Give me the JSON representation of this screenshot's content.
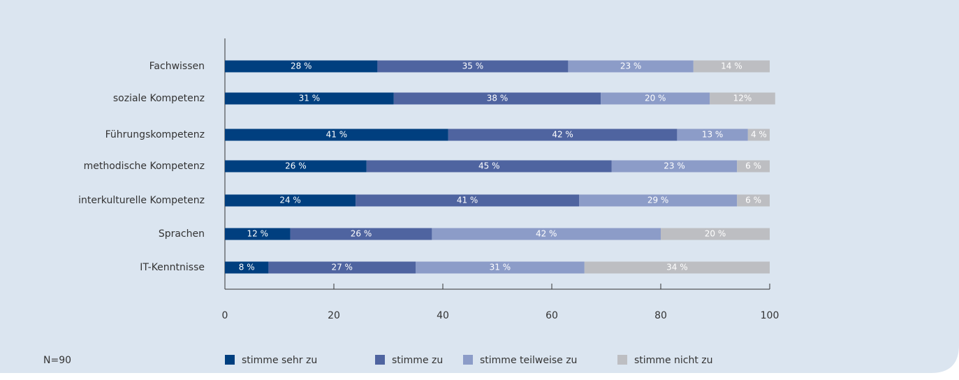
{
  "chart_data": {
    "type": "stacked_bar_horizontal",
    "categories": [
      "Fachwissen",
      "soziale Kompetenz",
      "Führungskompetenz",
      "methodische Kompetenz",
      "interkulturelle Kompetenz",
      "Sprachen",
      "IT-Kenntnisse"
    ],
    "series": [
      {
        "name": "stimme sehr zu",
        "color": "#003f7f",
        "values": [
          28,
          31,
          41,
          26,
          24,
          12,
          8
        ],
        "value_labels": [
          "28 %",
          "31 %",
          "41 %",
          "26 %",
          "24 %",
          "12 %",
          "8 %"
        ]
      },
      {
        "name": "stimme zu",
        "color": "#4f64a0",
        "values": [
          35,
          38,
          42,
          45,
          41,
          26,
          27
        ],
        "value_labels": [
          "35 %",
          "38 %",
          "42 %",
          "45 %",
          "41 %",
          "26 %",
          "27 %"
        ]
      },
      {
        "name": "stimme teilweise zu",
        "color": "#8c9cc8",
        "values": [
          23,
          20,
          13,
          23,
          29,
          42,
          31
        ],
        "value_labels": [
          "23 %",
          "20 %",
          "13 %",
          "23 %",
          "29 %",
          "42 %",
          "31 %"
        ]
      },
      {
        "name": "stimme nicht zu",
        "color": "#bdbec2",
        "values": [
          14,
          12,
          4,
          6,
          6,
          20,
          34
        ],
        "value_labels": [
          "14 %",
          "12%",
          "4 %",
          "6 %",
          "6 %",
          "20 %",
          "34 %"
        ]
      }
    ],
    "xlim": [
      0,
      100
    ],
    "xticks": [
      0,
      20,
      40,
      60,
      80,
      100
    ],
    "note": "N=90"
  }
}
